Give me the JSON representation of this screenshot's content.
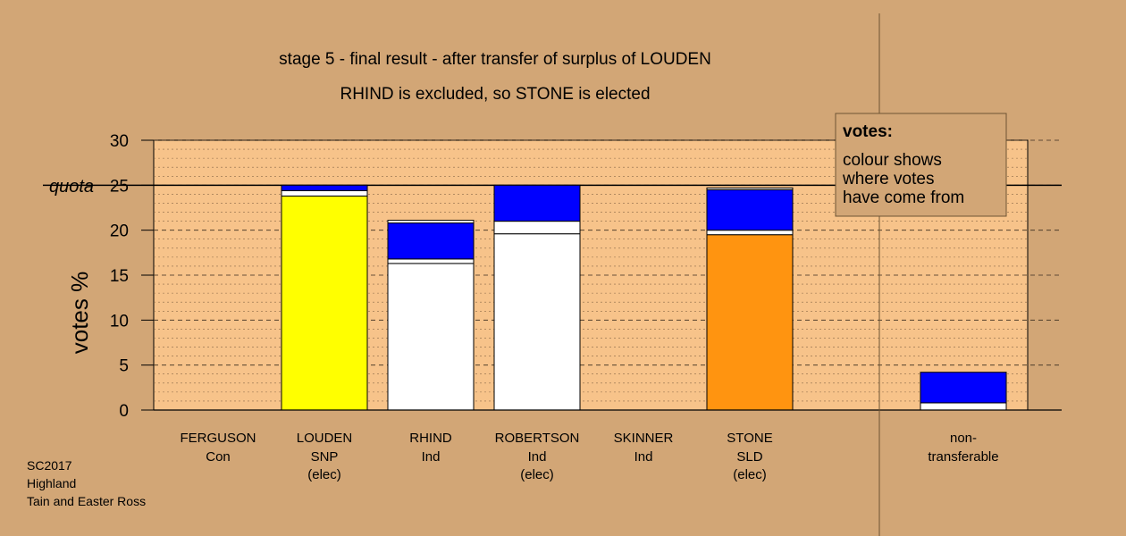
{
  "title": "stage 5 - final result - after transfer of surplus of LOUDEN",
  "subtitle": "RHIND is excluded, so STONE is elected",
  "source_lines": [
    "SC2017",
    "Highland",
    "Tain and Easter Ross"
  ],
  "legend": {
    "title": "votes:",
    "lines": [
      "colour shows",
      "where votes",
      "have come from"
    ]
  },
  "colors": {
    "background": "#d2a676",
    "plot_area": "#f7c38a",
    "transfer": "#0000ff",
    "white": "#ffffff",
    "SNP": "#ffff00",
    "SLD": "#ff9410",
    "Ind": "#ffffff"
  },
  "chart_data": {
    "type": "bar",
    "stacked": true,
    "title": "stage 5 - final result - after transfer of surplus of LOUDEN",
    "subtitle": "RHIND is excluded, so STONE is elected",
    "ylabel": "votes %",
    "ylim": [
      0,
      30
    ],
    "yticks": [
      0,
      5,
      10,
      15,
      20,
      25,
      30
    ],
    "quota": 25,
    "quota_label": "quota",
    "grid": true,
    "legend_position": "top-right",
    "categories": [
      {
        "name": "FERGUSON",
        "party": "Con",
        "note": "",
        "segments": []
      },
      {
        "name": "LOUDEN",
        "party": "SNP",
        "note": "(elec)",
        "segments": [
          {
            "source": "first preferences",
            "value": 23.8,
            "color": "#ffff00"
          },
          {
            "source": "transfers (white)",
            "value": 0.6,
            "color": "#ffffff"
          },
          {
            "source": "transfers (blue)",
            "value": 0.6,
            "color": "#0000ff"
          }
        ]
      },
      {
        "name": "RHIND",
        "party": "Ind",
        "note": "",
        "segments": [
          {
            "source": "first preferences",
            "value": 16.3,
            "color": "#ffffff"
          },
          {
            "source": "transfers (white)",
            "value": 0.5,
            "color": "#ffffff"
          },
          {
            "source": "transfers (blue)",
            "value": 4.0,
            "color": "#0000ff"
          },
          {
            "source": "transfers (white)",
            "value": 0.3,
            "color": "#ffffff"
          }
        ]
      },
      {
        "name": "ROBERTSON",
        "party": "Ind",
        "note": "(elec)",
        "segments": [
          {
            "source": "first preferences",
            "value": 19.6,
            "color": "#ffffff"
          },
          {
            "source": "transfers (white)",
            "value": 1.4,
            "color": "#ffffff"
          },
          {
            "source": "transfers (blue)",
            "value": 4.0,
            "color": "#0000ff"
          }
        ]
      },
      {
        "name": "SKINNER",
        "party": "Ind",
        "note": "",
        "segments": []
      },
      {
        "name": "STONE",
        "party": "SLD",
        "note": "(elec)",
        "segments": [
          {
            "source": "first preferences",
            "value": 19.5,
            "color": "#ff9410"
          },
          {
            "source": "transfers (white)",
            "value": 0.5,
            "color": "#ffffff"
          },
          {
            "source": "transfers (blue)",
            "value": 4.5,
            "color": "#0000ff"
          },
          {
            "source": "transfers (white)",
            "value": 0.2,
            "color": "#ffffff"
          }
        ]
      }
    ],
    "non_transferable": {
      "label_lines": [
        "non-",
        "transferable"
      ],
      "segments": [
        {
          "source": "white",
          "value": 0.8,
          "color": "#ffffff"
        },
        {
          "source": "blue",
          "value": 3.4,
          "color": "#0000ff"
        }
      ]
    }
  }
}
